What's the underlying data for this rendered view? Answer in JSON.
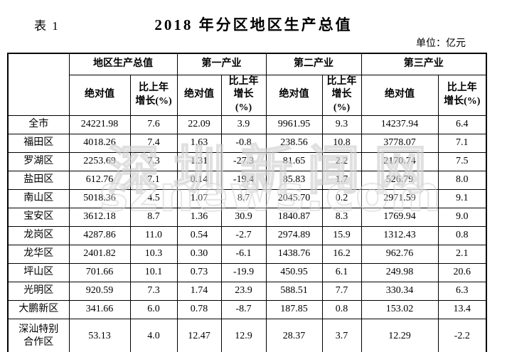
{
  "page": {
    "table_label": "表 1",
    "title": "2018 年分区地区生产总值",
    "unit": "单位：亿元"
  },
  "watermark": {
    "line1": "深圳新闻网",
    "line2": "sznews.com"
  },
  "table": {
    "corner": "",
    "groups": [
      "地区生产总值",
      "第一产业",
      "第二产业",
      "第三产业"
    ],
    "sub_absolute": "绝对值",
    "sub_growth": "比上年增长(%)",
    "rows": [
      {
        "name": "全市",
        "values": [
          "24221.98",
          "7.6",
          "22.09",
          "3.9",
          "9961.95",
          "9.3",
          "14237.94",
          "6.4"
        ]
      },
      {
        "name": "福田区",
        "values": [
          "4018.26",
          "7.4",
          "1.63",
          "-0.8",
          "238.56",
          "10.8",
          "3778.07",
          "7.1"
        ]
      },
      {
        "name": "罗湖区",
        "values": [
          "2253.69",
          "7.3",
          "1.31",
          "-27.3",
          "81.65",
          "2.2",
          "2170.74",
          "7.5"
        ]
      },
      {
        "name": "盐田区",
        "values": [
          "612.76",
          "7.1",
          "0.14",
          "-19.4",
          "85.83",
          "1.7",
          "526.79",
          "8.0"
        ]
      },
      {
        "name": "南山区",
        "values": [
          "5018.36",
          "4.5",
          "1.07",
          "8.7",
          "2045.70",
          "0.2",
          "2971.59",
          "9.1"
        ]
      },
      {
        "name": "宝安区",
        "values": [
          "3612.18",
          "8.7",
          "1.36",
          "30.9",
          "1840.87",
          "8.3",
          "1769.94",
          "9.0"
        ]
      },
      {
        "name": "龙岗区",
        "values": [
          "4287.86",
          "11.0",
          "0.54",
          "-2.7",
          "2974.89",
          "15.9",
          "1312.43",
          "0.8"
        ]
      },
      {
        "name": "龙华区",
        "values": [
          "2401.82",
          "10.3",
          "0.30",
          "-6.1",
          "1438.76",
          "16.2",
          "962.76",
          "2.1"
        ]
      },
      {
        "name": "坪山区",
        "values": [
          "701.66",
          "10.1",
          "0.73",
          "-19.9",
          "450.95",
          "6.1",
          "249.98",
          "20.6"
        ]
      },
      {
        "name": "光明区",
        "values": [
          "920.59",
          "7.3",
          "1.74",
          "23.9",
          "588.51",
          "7.7",
          "330.34",
          "6.3"
        ]
      },
      {
        "name": "大鹏新区",
        "values": [
          "341.66",
          "6.0",
          "0.78",
          "-8.7",
          "187.85",
          "0.8",
          "153.02",
          "13.4"
        ]
      },
      {
        "name": "深汕特别合作区",
        "values": [
          "53.13",
          "4.0",
          "12.47",
          "12.9",
          "28.37",
          "3.7",
          "12.29",
          "-2.2"
        ]
      }
    ]
  }
}
